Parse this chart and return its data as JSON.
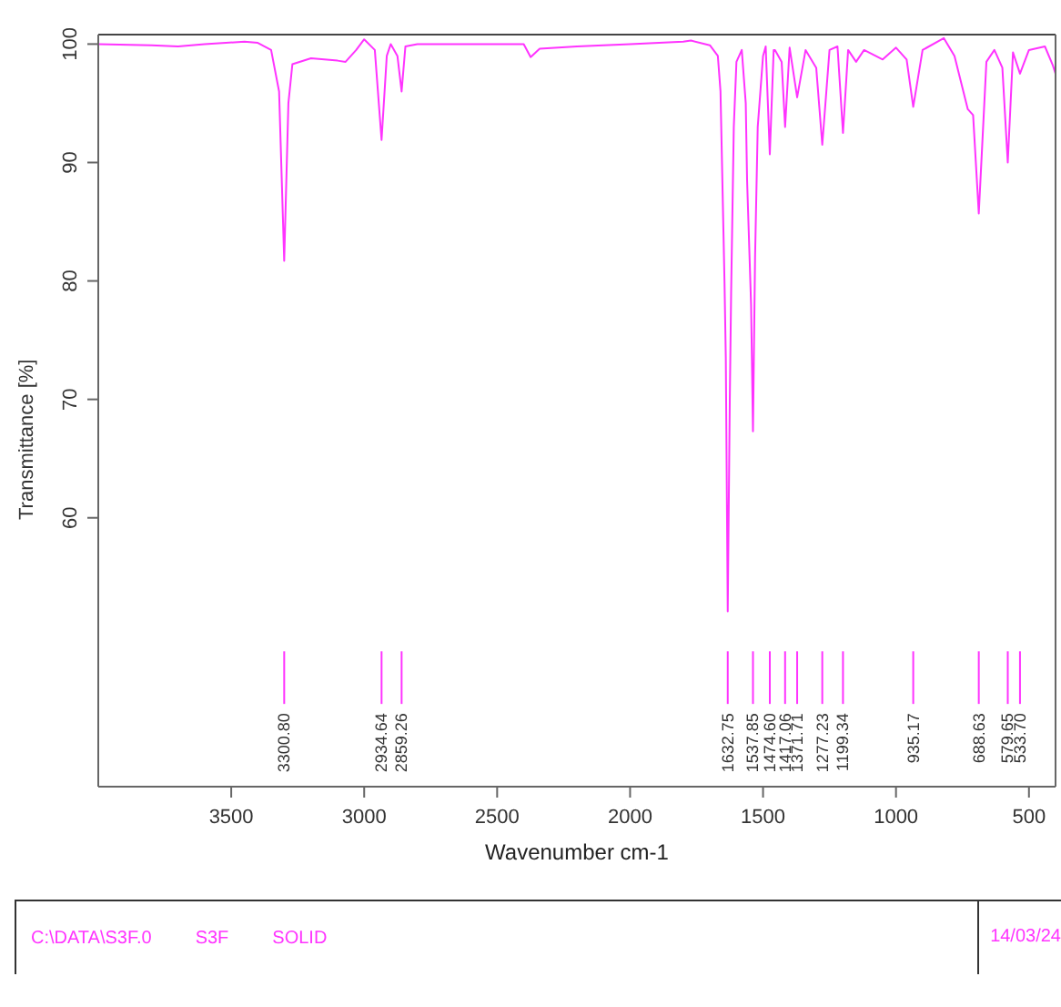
{
  "chart_data": {
    "type": "line",
    "xlabel": "Wavenumber cm-1",
    "ylabel": "Transmittance [%]",
    "xlim": [
      4000,
      400
    ],
    "xticks": [
      3500,
      3000,
      2500,
      2000,
      1500,
      1000,
      500
    ],
    "ylim": [
      37.3,
      100.8
    ],
    "yticks": [
      60,
      70,
      80,
      90,
      100
    ],
    "legend": false,
    "marker": "none",
    "line_style": "solid",
    "series": [
      {
        "color": "#ff33ff",
        "x": [
          4000,
          3800,
          3700,
          3600,
          3450,
          3400,
          3350,
          3320,
          3300.8,
          3285,
          3270,
          3200,
          3100,
          3070,
          3030,
          3000,
          2960,
          2934.64,
          2915,
          2900,
          2875,
          2859.26,
          2845,
          2800,
          2500,
          2400,
          2374,
          2340,
          2200,
          2000,
          1800,
          1771,
          1700,
          1670,
          1660,
          1645,
          1640,
          1632.75,
          1625,
          1620,
          1610,
          1600,
          1580,
          1565,
          1560,
          1545,
          1537.85,
          1530,
          1520,
          1500,
          1490,
          1474.6,
          1460,
          1455,
          1430,
          1417.06,
          1400,
          1371.71,
          1340,
          1300,
          1277.23,
          1250,
          1220,
          1199.34,
          1180,
          1150,
          1120,
          1050,
          1000,
          960,
          935.17,
          900,
          820,
          780,
          730,
          710,
          688.63,
          660,
          630,
          600,
          579.65,
          560,
          533.7,
          500,
          440,
          410,
          400
        ],
        "values": [
          100,
          99.9,
          99.8,
          100,
          100.2,
          100.1,
          99.5,
          96,
          81.7,
          95,
          98.3,
          98.8,
          98.6,
          98.5,
          99.5,
          100.4,
          99.5,
          91.9,
          99,
          100,
          99,
          96,
          99.8,
          100,
          100,
          100,
          98.9,
          99.6,
          99.8,
          100,
          100.2,
          100.3,
          99.9,
          99,
          96,
          80,
          73.5,
          52.1,
          70,
          79,
          93,
          98.5,
          99.5,
          95,
          88.5,
          78,
          67.3,
          82,
          93,
          99,
          99.8,
          90.7,
          99.5,
          99.5,
          98.5,
          93,
          99.7,
          95.5,
          99.5,
          98,
          91.5,
          99.5,
          99.8,
          92.5,
          99.5,
          98.5,
          99.5,
          98.7,
          99.7,
          98.7,
          94.7,
          99.5,
          100.5,
          99,
          94.5,
          94,
          85.7,
          98.5,
          99.5,
          98,
          90,
          99.3,
          97.5,
          99.5,
          99.8,
          98.2,
          97.5
        ]
      }
    ],
    "ref_lines": [
      {
        "axis": "x",
        "value": 3300.8,
        "label": "3300.80"
      },
      {
        "axis": "x",
        "value": 2934.64,
        "label": "2934.64"
      },
      {
        "axis": "x",
        "value": 2859.26,
        "label": "2859.26"
      },
      {
        "axis": "x",
        "value": 1632.75,
        "label": "1632.75"
      },
      {
        "axis": "x",
        "value": 1537.85,
        "label": "1537.85"
      },
      {
        "axis": "x",
        "value": 1474.6,
        "label": "1474.60"
      },
      {
        "axis": "x",
        "value": 1417.06,
        "label": "1417.06"
      },
      {
        "axis": "x",
        "value": 1371.71,
        "label": "1371.71"
      },
      {
        "axis": "x",
        "value": 1277.23,
        "label": "1277.23"
      },
      {
        "axis": "x",
        "value": 1199.34,
        "label": "1199.34"
      },
      {
        "axis": "x",
        "value": 935.17,
        "label": "935.17"
      },
      {
        "axis": "x",
        "value": 688.63,
        "label": "688.63"
      },
      {
        "axis": "x",
        "value": 579.65,
        "label": "579.65"
      },
      {
        "axis": "x",
        "value": 533.7,
        "label": "533.70"
      }
    ],
    "annotations": [
      "C:\\DATA\\S3F.0",
      "S3F",
      "SOLID",
      "14/03/24"
    ]
  }
}
